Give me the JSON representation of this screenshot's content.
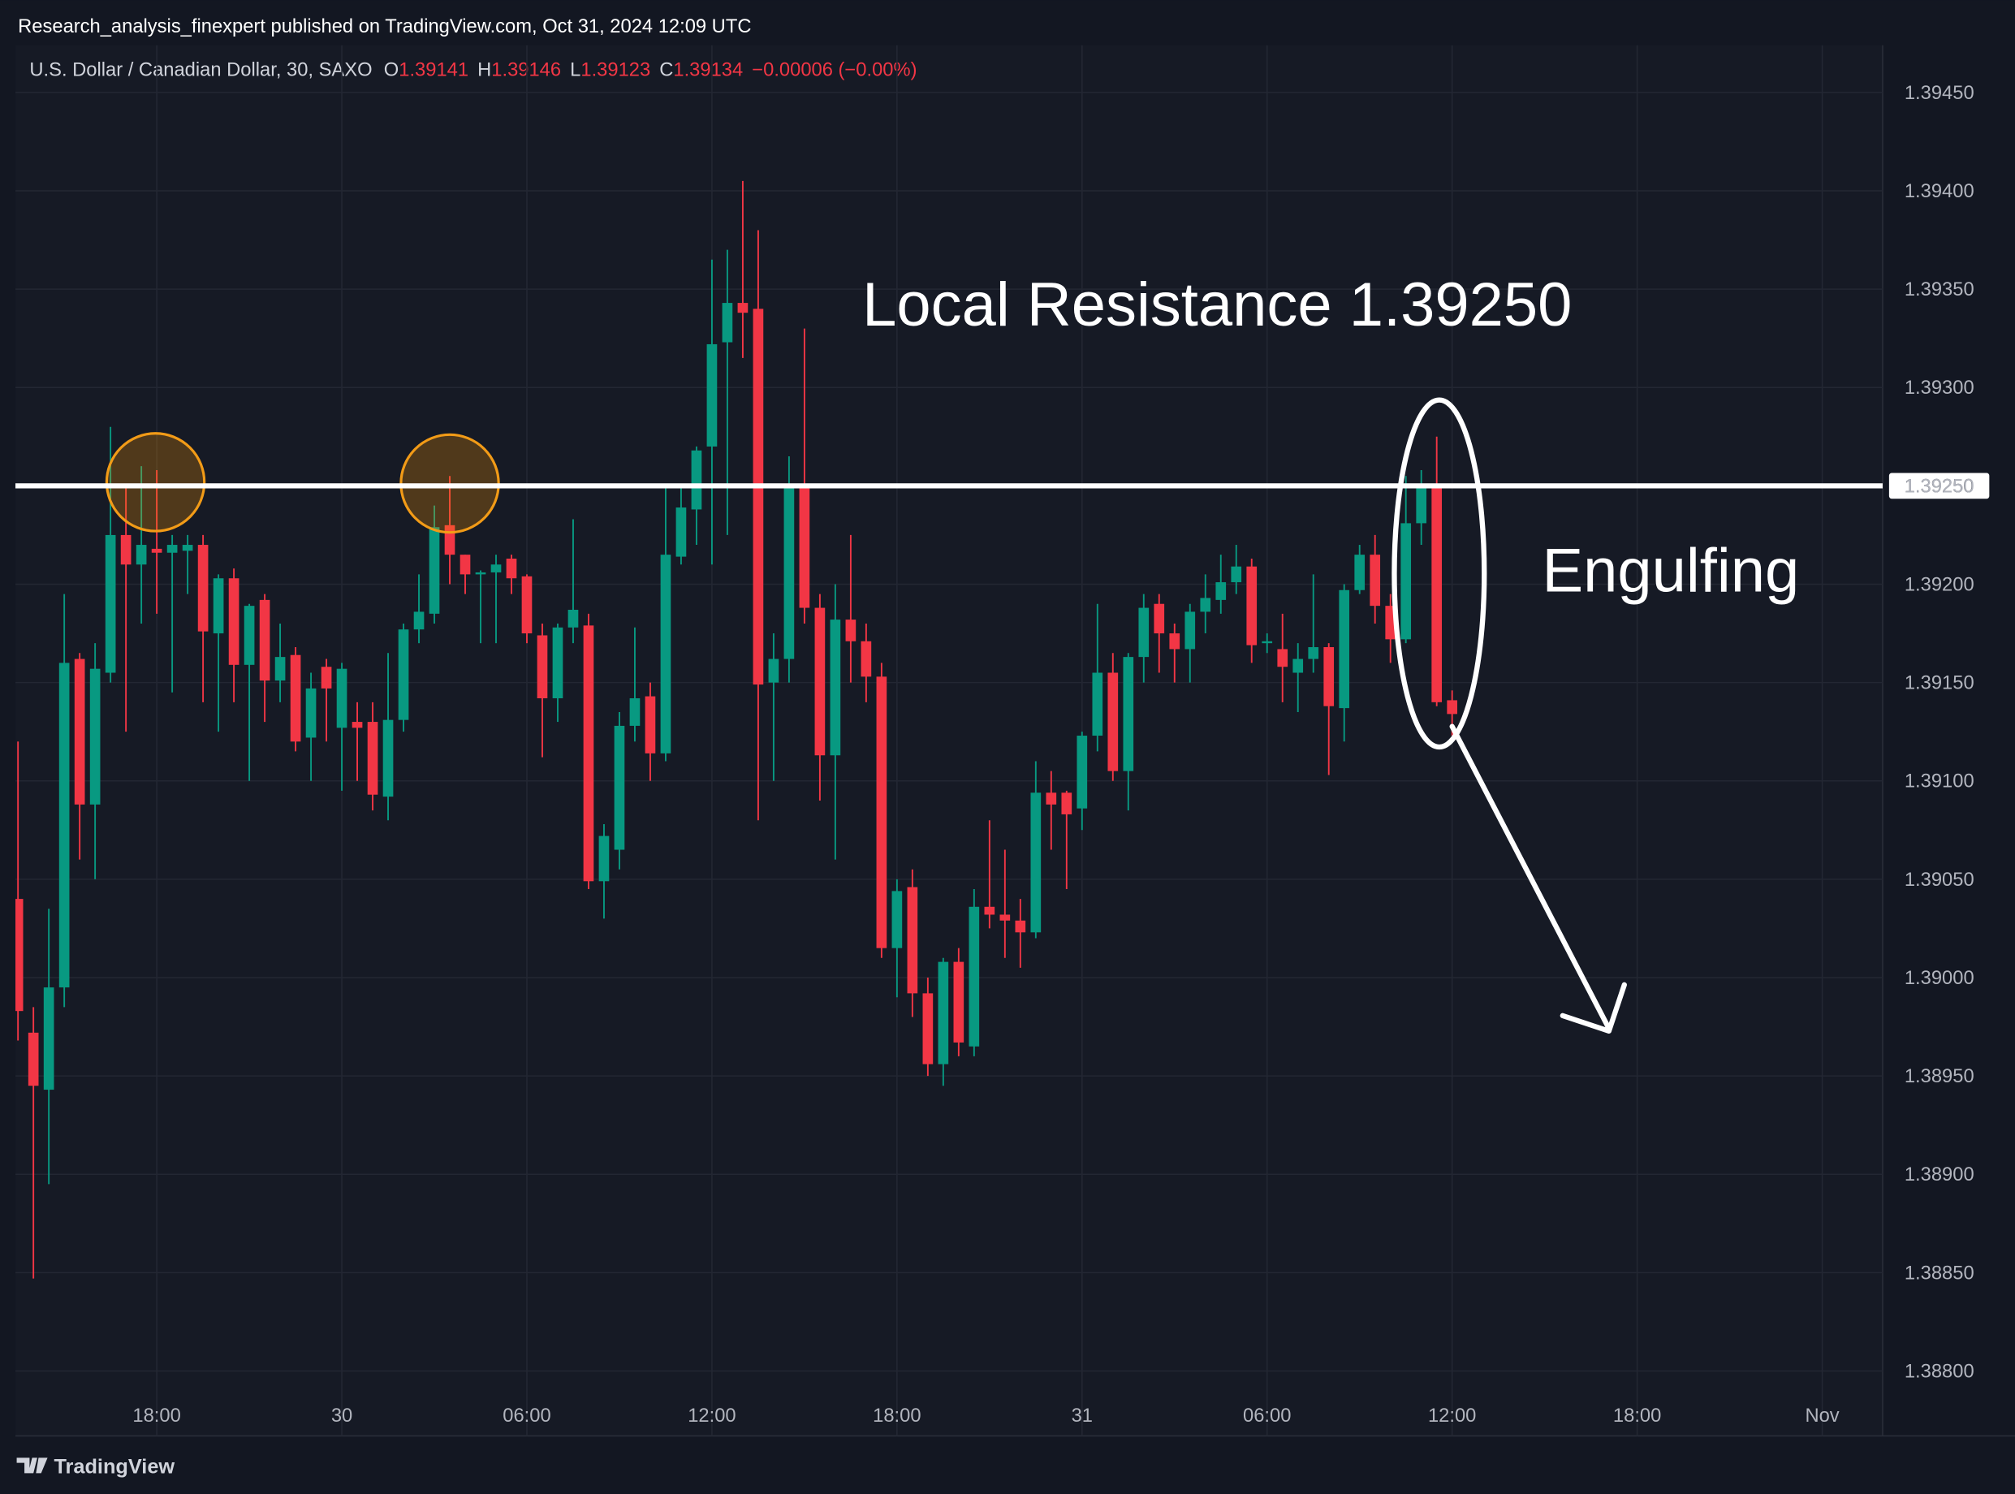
{
  "header": {
    "byline": "Research_analysis_finexpert published on TradingView.com, Oct 31, 2024 12:09 UTC"
  },
  "footer": {
    "brand": "TradingView"
  },
  "chart_data": {
    "type": "candlestick",
    "symbol": "U.S. Dollar / Canadian Dollar, 30, SAXO",
    "ohlc_keys": {
      "open": "O",
      "high": "H",
      "low": "L",
      "close": "C"
    },
    "change": "−0.00006 (−0.00%)",
    "up_color": "#089981",
    "down_color": "#f23645",
    "categories": [
      null,
      null,
      null,
      null,
      null,
      null,
      null,
      null,
      null,
      "18:00",
      null,
      null,
      null,
      null,
      null,
      null,
      null,
      null,
      null,
      null,
      null,
      "30",
      null,
      null,
      null,
      null,
      null,
      null,
      null,
      null,
      null,
      null,
      null,
      "06:00",
      null,
      null,
      null,
      null,
      null,
      null,
      null,
      null,
      null,
      null,
      null,
      "12:00",
      null,
      null,
      null,
      null,
      null,
      null,
      null,
      null,
      null,
      null,
      null,
      "18:00",
      null,
      null,
      null,
      null,
      null,
      null,
      null,
      null,
      null,
      null,
      null,
      "31",
      null,
      null,
      null,
      null,
      null,
      null,
      null,
      null,
      null,
      null,
      null,
      "06:00",
      null,
      null,
      null,
      null,
      null,
      null,
      null,
      null,
      null,
      null,
      null,
      "12:00",
      null,
      null,
      null,
      null,
      null,
      null,
      null,
      null,
      null,
      null,
      null,
      "18:00",
      null,
      null,
      null,
      null,
      null,
      null,
      null,
      null,
      null,
      null,
      null,
      "Nov",
      null,
      null,
      null
    ],
    "open": [
      1.3904,
      1.38972,
      1.38943,
      1.38995,
      1.39162,
      1.39088,
      1.39155,
      1.39225,
      1.3921,
      1.39218,
      1.39216,
      1.39217,
      1.3922,
      1.39175,
      1.39203,
      1.39159,
      1.39192,
      1.39151,
      1.39164,
      1.39122,
      1.39158,
      1.39127,
      1.3913,
      1.3913,
      1.39092,
      1.39131,
      1.39177,
      1.39185,
      1.3923,
      1.39215,
      1.39205,
      1.39206,
      1.39213,
      1.39204,
      1.39174,
      1.39142,
      1.39178,
      1.39179,
      1.39049,
      1.39065,
      1.39128,
      1.39143,
      1.39114,
      1.39214,
      1.39238,
      1.3927,
      1.39323,
      1.39343,
      1.3934,
      1.3915,
      1.39162,
      1.3925,
      1.39188,
      1.39113,
      1.39182,
      1.39171,
      1.39153,
      1.39015,
      1.39046,
      1.38992,
      1.38956,
      1.39008,
      1.38965,
      1.39036,
      1.39032,
      1.39029,
      1.39023,
      1.39094,
      1.39094,
      1.39086,
      1.39123,
      1.39155,
      1.39105,
      1.39163,
      1.3919,
      1.39175,
      1.39167,
      1.39186,
      1.39192,
      1.39201,
      1.39209,
      1.3917,
      1.39167,
      1.39155,
      1.39162,
      1.39168,
      1.39137,
      1.39197,
      1.39215,
      1.39189,
      1.39172,
      1.39231,
      1.39251,
      1.39141,
      null,
      null,
      null,
      null,
      null,
      null,
      null,
      null,
      null,
      null,
      null,
      null,
      null,
      null,
      null,
      null,
      null,
      null,
      null,
      null,
      null,
      null,
      null,
      null,
      null,
      null,
      null
    ],
    "high": [
      1.3912,
      1.38985,
      1.39035,
      1.39195,
      1.39165,
      1.3917,
      1.3928,
      1.3925,
      1.3926,
      1.39258,
      1.39225,
      1.39225,
      1.39225,
      1.39205,
      1.39208,
      1.3919,
      1.39195,
      1.3918,
      1.39168,
      1.39155,
      1.39162,
      1.3916,
      1.3914,
      1.3914,
      1.39165,
      1.3918,
      1.39205,
      1.3924,
      1.39255,
      1.39215,
      1.39207,
      1.39215,
      1.39215,
      1.39205,
      1.3918,
      1.3918,
      1.39233,
      1.39185,
      1.39078,
      1.39135,
      1.39178,
      1.3915,
      1.3925,
      1.3925,
      1.3927,
      1.39365,
      1.3937,
      1.39405,
      1.3938,
      1.39175,
      1.39265,
      1.3933,
      1.39195,
      1.392,
      1.39225,
      1.3918,
      1.3916,
      1.3905,
      1.39055,
      1.39,
      1.3901,
      1.39015,
      1.39045,
      1.3908,
      1.39065,
      1.3904,
      1.3911,
      1.39105,
      1.39095,
      1.39125,
      1.3919,
      1.39165,
      1.39165,
      1.39195,
      1.39195,
      1.3918,
      1.3919,
      1.39205,
      1.39215,
      1.3922,
      1.39213,
      1.39175,
      1.39185,
      1.3917,
      1.39205,
      1.3917,
      1.392,
      1.3922,
      1.39225,
      1.39195,
      1.39255,
      1.39258,
      1.39275,
      1.39146,
      null,
      null,
      null,
      null,
      null,
      null,
      null,
      null,
      null,
      null,
      null,
      null,
      null,
      null,
      null,
      null,
      null,
      null,
      null,
      null,
      null,
      null,
      null,
      null,
      null,
      null,
      null
    ],
    "low": [
      1.38968,
      1.38847,
      1.38895,
      1.38985,
      1.3906,
      1.3905,
      1.3915,
      1.39125,
      1.3918,
      1.39185,
      1.39145,
      1.39195,
      1.3914,
      1.39125,
      1.3914,
      1.391,
      1.3913,
      1.3914,
      1.39115,
      1.391,
      1.3912,
      1.39095,
      1.391,
      1.39085,
      1.3908,
      1.39125,
      1.3917,
      1.3918,
      1.392,
      1.39195,
      1.3917,
      1.3917,
      1.39195,
      1.3917,
      1.39112,
      1.3913,
      1.3917,
      1.39045,
      1.3903,
      1.39055,
      1.3912,
      1.391,
      1.3911,
      1.3921,
      1.3922,
      1.3921,
      1.39225,
      1.39315,
      1.3908,
      1.391,
      1.3915,
      1.3918,
      1.3909,
      1.3906,
      1.3915,
      1.3914,
      1.3901,
      1.3899,
      1.3898,
      1.3895,
      1.38945,
      1.3896,
      1.3896,
      1.39025,
      1.3901,
      1.39005,
      1.3902,
      1.39065,
      1.39045,
      1.39075,
      1.39115,
      1.391,
      1.39085,
      1.3915,
      1.39155,
      1.3915,
      1.3915,
      1.39175,
      1.39185,
      1.39195,
      1.3916,
      1.39165,
      1.3914,
      1.39135,
      1.39155,
      1.39103,
      1.3912,
      1.39195,
      1.3918,
      1.3916,
      1.3917,
      1.3922,
      1.39138,
      1.39123,
      null,
      null,
      null,
      null,
      null,
      null,
      null,
      null,
      null,
      null,
      null,
      null,
      null,
      null,
      null,
      null,
      null,
      null,
      null,
      null,
      null,
      null,
      null,
      null,
      null,
      null,
      null
    ],
    "close": [
      1.38983,
      1.38945,
      1.38995,
      1.3916,
      1.39088,
      1.39157,
      1.39225,
      1.3921,
      1.3922,
      1.39216,
      1.3922,
      1.3922,
      1.39176,
      1.39203,
      1.39159,
      1.39189,
      1.39151,
      1.39163,
      1.3912,
      1.39147,
      1.39147,
      1.39157,
      1.39127,
      1.39093,
      1.39131,
      1.39177,
      1.39186,
      1.39229,
      1.39215,
      1.39205,
      1.39206,
      1.3921,
      1.39203,
      1.39175,
      1.39142,
      1.39178,
      1.39187,
      1.39049,
      1.39072,
      1.39128,
      1.39142,
      1.39114,
      1.39215,
      1.39239,
      1.39268,
      1.39322,
      1.39343,
      1.39338,
      1.39149,
      1.39162,
      1.3925,
      1.39188,
      1.39113,
      1.39182,
      1.39171,
      1.39153,
      1.39015,
      1.39044,
      1.38992,
      1.38956,
      1.39008,
      1.38967,
      1.39036,
      1.39032,
      1.39029,
      1.39023,
      1.39094,
      1.39088,
      1.39083,
      1.39123,
      1.39155,
      1.39105,
      1.39163,
      1.39188,
      1.39175,
      1.39167,
      1.39186,
      1.39193,
      1.39201,
      1.39209,
      1.39169,
      1.39171,
      1.39158,
      1.39162,
      1.39168,
      1.39138,
      1.39197,
      1.39215,
      1.39189,
      1.39172,
      1.39231,
      1.3925,
      1.3914,
      1.39134,
      null,
      null,
      null,
      null,
      null,
      null,
      null,
      null,
      null,
      null,
      null,
      null,
      null,
      null,
      null,
      null,
      null,
      null,
      null,
      null,
      null,
      null,
      null,
      null,
      null,
      null,
      null
    ],
    "ylim": [
      1.38767,
      1.39474
    ],
    "yticks": [
      {
        "value": 1.388,
        "label": "1.38800"
      },
      {
        "value": 1.3885,
        "label": "1.38850"
      },
      {
        "value": 1.389,
        "label": "1.38900"
      },
      {
        "value": 1.3895,
        "label": "1.38950"
      },
      {
        "value": 1.39,
        "label": "1.39000"
      },
      {
        "value": 1.3905,
        "label": "1.39050"
      },
      {
        "value": 1.391,
        "label": "1.39100"
      },
      {
        "value": 1.3915,
        "label": "1.39150"
      },
      {
        "value": 1.392,
        "label": "1.39200"
      },
      {
        "value": 1.3925,
        "label": "1.39250"
      },
      {
        "value": 1.393,
        "label": "1.39300"
      },
      {
        "value": 1.3935,
        "label": "1.39350"
      },
      {
        "value": 1.394,
        "label": "1.39400"
      },
      {
        "value": 1.3945,
        "label": "1.39450"
      }
    ],
    "grid": true,
    "resistance": {
      "value": 1.3925,
      "label": "1.39250"
    },
    "annotations": {
      "resistance_text": "Local Resistance 1.39250",
      "pattern_text": "Engulfing"
    }
  }
}
